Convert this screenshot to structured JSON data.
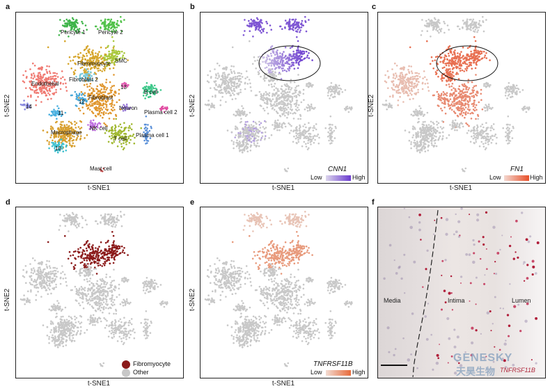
{
  "panels": {
    "a": {
      "letter": "a",
      "xlabel": "t-SNE1",
      "ylabel": "t-SNE2"
    },
    "b": {
      "letter": "b",
      "xlabel": "t-SNE1",
      "ylabel": "t-SNE2",
      "gene": "CNN1",
      "low": "Low",
      "high": "High"
    },
    "c": {
      "letter": "c",
      "xlabel": "t-SNE1",
      "ylabel": "t-SNE2",
      "gene": "FN1",
      "low": "Low",
      "high": "High"
    },
    "d": {
      "letter": "d",
      "xlabel": "t-SNE1",
      "ylabel": "t-SNE2",
      "legend": [
        "Fibromyocyte",
        "Other"
      ]
    },
    "e": {
      "letter": "e",
      "xlabel": "t-SNE1",
      "ylabel": "t-SNE2",
      "gene": "TNFRSF11B",
      "low": "Low",
      "high": "High"
    },
    "f": {
      "letter": "f",
      "labels": {
        "media": "Media",
        "intima": "Intima",
        "lumen": "Lumen"
      },
      "gene": "TNFRSF11B",
      "watermark": "GENESKY",
      "watermark_cn": "天昊生物"
    }
  },
  "clusters": [
    {
      "label": "Pericyte 1"
    },
    {
      "label": "Pericyte 2"
    },
    {
      "label": "Fibromyocyte"
    },
    {
      "label": "SMC"
    },
    {
      "label": "Fibroblast 2"
    },
    {
      "label": "Endothelial"
    },
    {
      "label": "Fibroblast"
    },
    {
      "label": "12"
    },
    {
      "label": "13"
    },
    {
      "label": "B cell"
    },
    {
      "label": "Neuron"
    },
    {
      "label": "Plasma cell 2"
    },
    {
      "label": "14"
    },
    {
      "label": "11"
    },
    {
      "label": "NK cell"
    },
    {
      "label": "Macrophage"
    },
    {
      "label": "T cell"
    },
    {
      "label": "Plasma cell 1"
    },
    {
      "label": "10"
    },
    {
      "label": "Mast cell"
    }
  ],
  "colors": {
    "pericyte1": "#3fb44a",
    "pericyte2": "#52c24a",
    "fibromyocyte": "#d6a52a",
    "smc": "#a8c83c",
    "fibroblast2": "#78c8d8",
    "endothelial": "#f07a72",
    "fibroblast": "#e0962e",
    "c12": "#4aa8d8",
    "c13": "#e05ab0",
    "bcell": "#3ec88a",
    "neuron": "#9a7ad8",
    "plasma2": "#e04aa0",
    "c14": "#8a8ae0",
    "c11": "#4ab0e0",
    "nk": "#c070e0",
    "macrophage": "#d8a030",
    "tcell": "#a0b830",
    "plasma1": "#5a90d8",
    "c10": "#40c0d0",
    "mast": "#c05050",
    "grey": "#c8c8c8",
    "cnn1": "#6a3ad0",
    "fn1": "#e8502a",
    "fibro_dark": "#8b1a1a",
    "tnf": "#e86a3a"
  }
}
